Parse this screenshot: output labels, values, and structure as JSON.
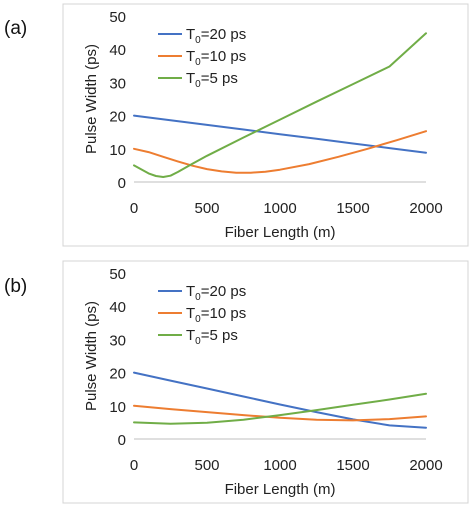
{
  "panels": [
    {
      "label": "(a)",
      "chart_data": {
        "type": "line",
        "xlabel": "Fiber Length (m)",
        "ylabel": "Pulse Width (ps)",
        "xlim": [
          0,
          2000
        ],
        "ylim": [
          0,
          50
        ],
        "xticks": [
          0,
          500,
          1000,
          1500,
          2000
        ],
        "yticks": [
          0,
          10,
          20,
          30,
          40,
          50
        ],
        "grid": false,
        "legend_position": "top-left",
        "series": [
          {
            "name": "T0=20 ps",
            "name_parts": [
              "T",
              "0",
              "=20 ps"
            ],
            "color": "#4472C4",
            "x": [
              0,
              250,
              500,
              750,
              1000,
              1250,
              1500,
              1750,
              2000
            ],
            "y": [
              20,
              18.6,
              17.2,
              15.8,
              14.4,
              13.0,
              11.6,
              10.2,
              8.8
            ]
          },
          {
            "name": "T0=10 ps",
            "name_parts": [
              "T",
              "0",
              "=10 ps"
            ],
            "color": "#ED7D31",
            "x": [
              0,
              100,
              200,
              300,
              400,
              500,
              600,
              700,
              800,
              900,
              1000,
              1200,
              1400,
              1600,
              1800,
              2000
            ],
            "y": [
              10,
              9.0,
              7.6,
              6.2,
              4.9,
              3.9,
              3.2,
              2.8,
              2.8,
              3.1,
              3.7,
              5.4,
              7.6,
              10.0,
              12.6,
              15.3
            ]
          },
          {
            "name": "T0=5 ps",
            "name_parts": [
              "T",
              "0",
              "=5 ps"
            ],
            "color": "#70AD47",
            "x": [
              0,
              100,
              150,
              200,
              250,
              300,
              400,
              500,
              750,
              1000,
              1250,
              1500,
              1750,
              2000
            ],
            "y": [
              5,
              2.6,
              1.8,
              1.5,
              1.9,
              3.0,
              5.5,
              7.9,
              13.4,
              18.8,
              24.2,
              29.5,
              34.8,
              44.8
            ]
          }
        ]
      }
    },
    {
      "label": "(b)",
      "chart_data": {
        "type": "line",
        "xlabel": "Fiber Length (m)",
        "ylabel": "Pulse Width (ps)",
        "xlim": [
          0,
          2000
        ],
        "ylim": [
          0,
          50
        ],
        "xticks": [
          0,
          500,
          1000,
          1500,
          2000
        ],
        "yticks": [
          0,
          10,
          20,
          30,
          40,
          50
        ],
        "grid": false,
        "legend_position": "top-left",
        "series": [
          {
            "name": "T0=20 ps",
            "name_parts": [
              "T",
              "0",
              "=20 ps"
            ],
            "color": "#4472C4",
            "x": [
              0,
              250,
              500,
              750,
              1000,
              1250,
              1500,
              1750,
              2000
            ],
            "y": [
              20,
              17.6,
              15.2,
              12.8,
              10.4,
              8.1,
              5.9,
              4.1,
              3.4
            ]
          },
          {
            "name": "T0=10 ps",
            "name_parts": [
              "T",
              "0",
              "=10 ps"
            ],
            "color": "#ED7D31",
            "x": [
              0,
              250,
              500,
              750,
              1000,
              1250,
              1500,
              1750,
              2000
            ],
            "y": [
              10,
              9.0,
              8.1,
              7.2,
              6.4,
              5.8,
              5.6,
              6.0,
              6.8
            ]
          },
          {
            "name": "T0=5 ps",
            "name_parts": [
              "T",
              "0",
              "=5 ps"
            ],
            "color": "#70AD47",
            "x": [
              0,
              250,
              500,
              750,
              1000,
              1250,
              1500,
              1750,
              2000
            ],
            "y": [
              5,
              4.6,
              4.9,
              5.8,
              7.2,
              8.7,
              10.3,
              11.9,
              13.6
            ]
          }
        ]
      }
    }
  ]
}
